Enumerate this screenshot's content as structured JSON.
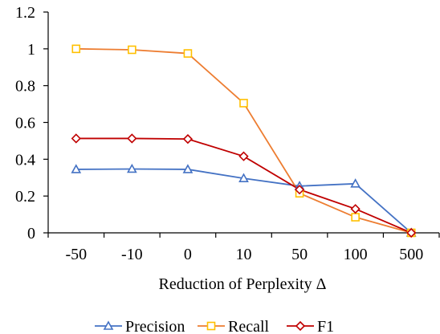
{
  "chart_data": {
    "type": "line",
    "title": "",
    "xlabel": "Reduction of Perplexity Δ",
    "ylabel": "",
    "categories": [
      "-50",
      "-10",
      "0",
      "10",
      "50",
      "100",
      "500"
    ],
    "ylim": [
      0,
      1.2
    ],
    "yticks": [
      "0",
      "0.2",
      "0.4",
      "0.6",
      "0.8",
      "1",
      "1.2"
    ],
    "grid": false,
    "legend_position": "bottom",
    "series": [
      {
        "name": "Precision",
        "values": [
          0.345,
          0.347,
          0.345,
          0.296,
          0.254,
          0.267,
          0.0
        ],
        "color": "#4472C4",
        "marker": "triangle"
      },
      {
        "name": "Recall",
        "values": [
          1.0,
          0.995,
          0.975,
          0.705,
          0.215,
          0.085,
          0.0
        ],
        "color": "#ED7D31",
        "marker_color": "#FFC000",
        "marker": "square"
      },
      {
        "name": "F1",
        "values": [
          0.513,
          0.513,
          0.51,
          0.416,
          0.235,
          0.13,
          0.0
        ],
        "color": "#C00000",
        "marker": "diamond"
      }
    ]
  }
}
